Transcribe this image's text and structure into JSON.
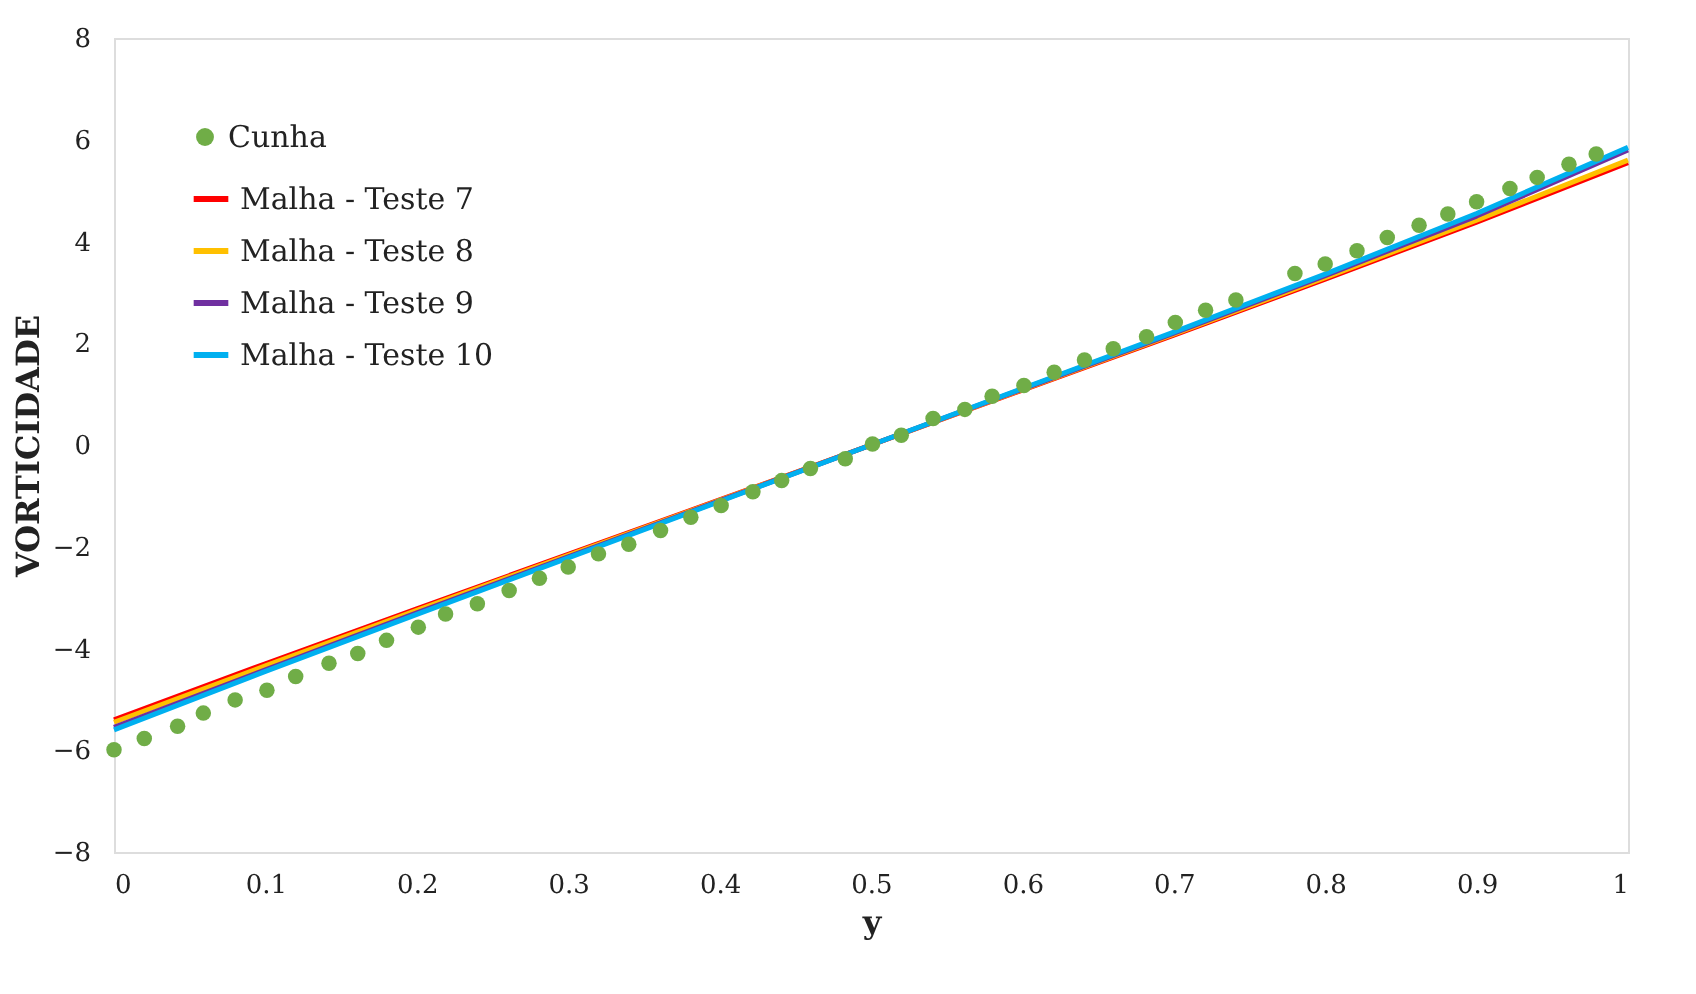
{
  "chart_data": {
    "type": "line",
    "xlabel": "y",
    "ylabel": "VORTICIDADE",
    "xlim": [
      0,
      1
    ],
    "xticks": [
      0,
      0.1,
      0.2,
      0.3,
      0.4,
      0.5,
      0.6,
      0.7,
      0.8,
      0.9,
      1
    ],
    "ylim": [
      -8,
      8
    ],
    "yticks": [
      -8,
      -6,
      -4,
      -2,
      0,
      2,
      4,
      6,
      8
    ],
    "grid": false,
    "legend": "top left",
    "series": [
      {
        "name": "Cunha",
        "type": "scatter",
        "marker": "circle",
        "color": "#70ad47",
        "x": [
          0,
          0.02,
          0.042,
          0.059,
          0.08,
          0.101,
          0.12,
          0.142,
          0.161,
          0.18,
          0.201,
          0.219,
          0.24,
          0.261,
          0.281,
          0.3,
          0.32,
          0.34,
          0.361,
          0.381,
          0.401,
          0.422,
          0.441,
          0.46,
          0.483,
          0.501,
          0.52,
          0.541,
          0.562,
          0.58,
          0.601,
          0.621,
          0.641,
          0.66,
          0.682,
          0.701,
          0.721,
          0.741,
          0.78,
          0.8,
          0.821,
          0.841,
          0.862,
          0.881,
          0.9,
          0.922,
          0.94,
          0.961,
          0.979
        ],
        "values": [
          -5.99,
          -5.77,
          -5.53,
          -5.27,
          -5.01,
          -4.82,
          -4.55,
          -4.29,
          -4.1,
          -3.84,
          -3.58,
          -3.32,
          -3.12,
          -2.86,
          -2.62,
          -2.4,
          -2.14,
          -1.95,
          -1.68,
          -1.42,
          -1.19,
          -0.92,
          -0.7,
          -0.46,
          -0.27,
          0.02,
          0.19,
          0.52,
          0.7,
          0.96,
          1.17,
          1.43,
          1.67,
          1.89,
          2.13,
          2.41,
          2.65,
          2.85,
          3.37,
          3.56,
          3.82,
          4.08,
          4.32,
          4.54,
          4.78,
          5.04,
          5.26,
          5.52,
          5.72
        ]
      },
      {
        "name": "Malha - Teste 7",
        "color": "#ff0000",
        "x": [
          0,
          0.1,
          0.2,
          0.3,
          0.4,
          0.5,
          0.6,
          0.7,
          0.8,
          0.9,
          1
        ],
        "values": [
          -5.4,
          -4.3,
          -3.22,
          -2.15,
          -1.08,
          0,
          1.08,
          2.16,
          3.26,
          4.38,
          5.55
        ]
      },
      {
        "name": "Malha - Teste 8",
        "color": "#ffc000",
        "x": [
          0,
          0.1,
          0.2,
          0.3,
          0.4,
          0.5,
          0.6,
          0.7,
          0.8,
          0.9,
          1
        ],
        "values": [
          -5.45,
          -4.34,
          -3.25,
          -2.17,
          -1.09,
          0,
          1.09,
          2.18,
          3.29,
          4.42,
          5.6
        ]
      },
      {
        "name": "Malha - Teste 9",
        "color": "#7030a0",
        "x": [
          0,
          0.1,
          0.2,
          0.3,
          0.4,
          0.5,
          0.6,
          0.7,
          0.8,
          0.9,
          1
        ],
        "values": [
          -5.55,
          -4.42,
          -3.3,
          -2.2,
          -1.1,
          0,
          1.1,
          2.2,
          3.33,
          4.5,
          5.8
        ]
      },
      {
        "name": "Malha - Teste 10",
        "color": "#00b0f0",
        "x": [
          0,
          0.1,
          0.2,
          0.3,
          0.4,
          0.5,
          0.6,
          0.7,
          0.8,
          0.9,
          1
        ],
        "values": [
          -5.6,
          -4.45,
          -3.33,
          -2.22,
          -1.11,
          0,
          1.11,
          2.22,
          3.36,
          4.55,
          5.85
        ]
      }
    ]
  }
}
